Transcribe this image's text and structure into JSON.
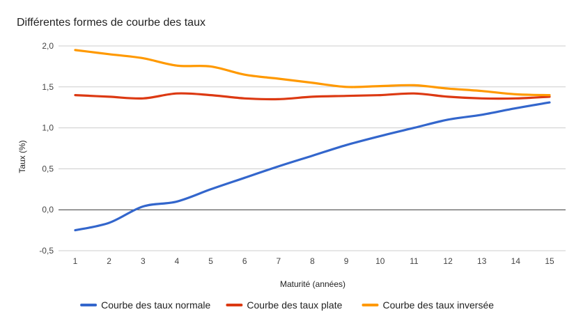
{
  "chart_data": {
    "type": "line",
    "title": "Différentes formes de courbe des taux",
    "xlabel": "Maturité (années)",
    "ylabel": "Taux (%)",
    "x": [
      1,
      2,
      3,
      4,
      5,
      6,
      7,
      8,
      9,
      10,
      11,
      12,
      13,
      14,
      15
    ],
    "y_ticks": [
      "2,0",
      "1,5",
      "1,0",
      "0,5",
      "0,0",
      "-0,5"
    ],
    "ylim": [
      -0.5,
      2.0
    ],
    "grid": true,
    "legend_position": "bottom",
    "series": [
      {
        "name": "Courbe des taux normale",
        "color": "#3366cc",
        "values": [
          -0.25,
          -0.16,
          0.04,
          0.1,
          0.25,
          0.39,
          0.53,
          0.66,
          0.79,
          0.9,
          1.0,
          1.1,
          1.16,
          1.24,
          1.31
        ]
      },
      {
        "name": "Courbe des taux plate",
        "color": "#dc3912",
        "values": [
          1.4,
          1.38,
          1.36,
          1.42,
          1.4,
          1.36,
          1.35,
          1.38,
          1.39,
          1.4,
          1.42,
          1.38,
          1.36,
          1.36,
          1.38
        ]
      },
      {
        "name": "Courbe des taux inversée",
        "color": "#ff9900",
        "values": [
          1.95,
          1.9,
          1.85,
          1.76,
          1.75,
          1.65,
          1.6,
          1.55,
          1.5,
          1.51,
          1.52,
          1.48,
          1.45,
          1.41,
          1.4
        ]
      }
    ]
  }
}
